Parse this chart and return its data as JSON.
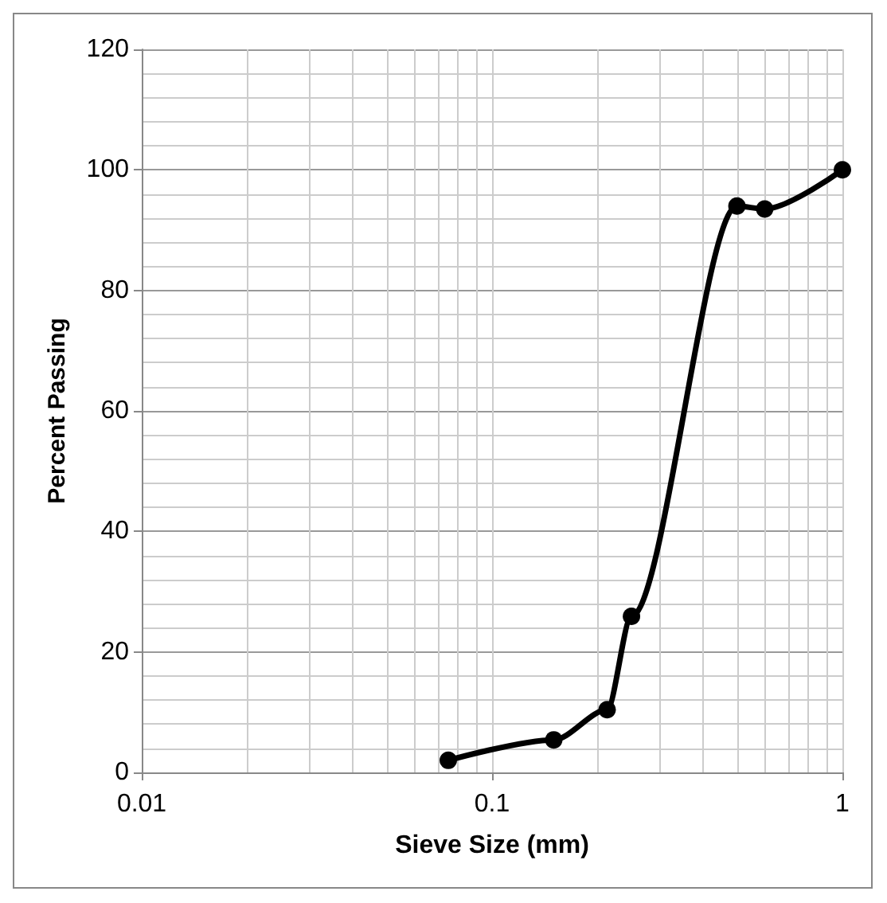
{
  "chart_data": {
    "type": "line",
    "xlabel": "Sieve Size (mm)",
    "ylabel": "Percent Passing",
    "x": [
      0.075,
      0.15,
      0.213,
      0.25,
      0.5,
      0.6,
      1
    ],
    "series": [
      {
        "color": "#000000",
        "values": [
          2,
          5.4,
          10.4,
          25.9,
          94,
          93.5,
          100
        ]
      }
    ],
    "xlim": [
      0.01,
      1
    ],
    "xticks": [
      0.01,
      0.1,
      1
    ],
    "ylim": [
      0,
      120
    ],
    "yticks": [
      0,
      20,
      40,
      60,
      80,
      100,
      120
    ],
    "log": "x",
    "grid": true,
    "marker": "circle",
    "line_style": "solid"
  }
}
